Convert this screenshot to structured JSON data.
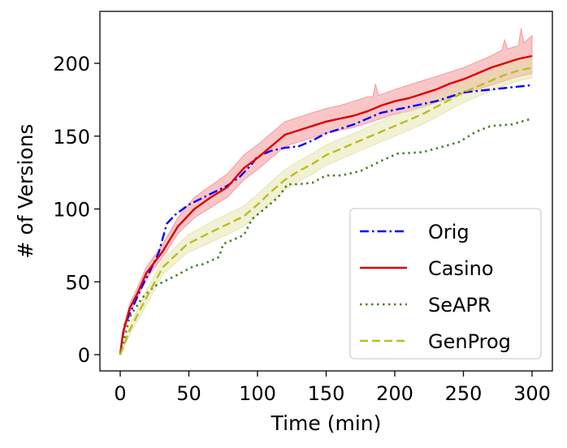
{
  "chart_data": {
    "type": "line",
    "title": "",
    "xlabel": "Time (min)",
    "ylabel": "# of Versions",
    "xlim": [
      -15,
      315
    ],
    "ylim": [
      -11,
      236
    ],
    "xticks": [
      0,
      50,
      100,
      150,
      200,
      250,
      300
    ],
    "yticks": [
      0,
      50,
      100,
      150,
      200
    ],
    "xtick_labels": [
      "0",
      "50",
      "100",
      "150",
      "200",
      "250",
      "300"
    ],
    "ytick_labels": [
      "0",
      "50",
      "100",
      "150",
      "200"
    ],
    "grid": false,
    "legend_position": "lower-right",
    "series": [
      {
        "name": "Orig",
        "color": "#0000ff",
        "style": "dashdot",
        "points": [
          [
            0,
            0
          ],
          [
            3,
            20
          ],
          [
            8,
            30
          ],
          [
            15,
            45
          ],
          [
            22,
            58
          ],
          [
            28,
            70
          ],
          [
            31,
            80
          ],
          [
            34,
            90
          ],
          [
            40,
            96
          ],
          [
            50,
            103
          ],
          [
            65,
            110
          ],
          [
            78,
            116
          ],
          [
            87,
            122
          ],
          [
            95,
            130
          ],
          [
            100,
            136
          ],
          [
            110,
            140
          ],
          [
            120,
            142
          ],
          [
            130,
            143
          ],
          [
            140,
            147
          ],
          [
            150,
            152
          ],
          [
            160,
            155
          ],
          [
            170,
            158
          ],
          [
            180,
            162
          ],
          [
            190,
            166
          ],
          [
            200,
            168
          ],
          [
            210,
            170
          ],
          [
            220,
            172
          ],
          [
            230,
            174
          ],
          [
            240,
            177
          ],
          [
            250,
            180
          ],
          [
            260,
            181
          ],
          [
            270,
            182
          ],
          [
            280,
            183
          ],
          [
            290,
            184
          ],
          [
            300,
            185
          ]
        ]
      },
      {
        "name": "Casino",
        "color": "#dd0000",
        "style": "solid",
        "band_color": "#f08080",
        "points": [
          [
            0,
            0
          ],
          [
            2,
            15
          ],
          [
            7,
            32
          ],
          [
            13,
            43
          ],
          [
            19,
            56
          ],
          [
            31,
            71
          ],
          [
            42,
            88
          ],
          [
            54,
            100
          ],
          [
            66,
            108
          ],
          [
            78,
            115
          ],
          [
            90,
            128
          ],
          [
            100,
            135
          ],
          [
            110,
            143
          ],
          [
            120,
            151
          ],
          [
            130,
            154
          ],
          [
            140,
            157
          ],
          [
            150,
            160
          ],
          [
            160,
            162
          ],
          [
            170,
            164
          ],
          [
            180,
            167
          ],
          [
            190,
            171
          ],
          [
            200,
            174
          ],
          [
            210,
            176
          ],
          [
            220,
            179
          ],
          [
            230,
            182
          ],
          [
            240,
            186
          ],
          [
            250,
            189
          ],
          [
            260,
            193
          ],
          [
            270,
            197
          ],
          [
            280,
            200
          ],
          [
            290,
            203
          ],
          [
            300,
            205
          ]
        ],
        "band_upper": [
          [
            0,
            0
          ],
          [
            2,
            17
          ],
          [
            7,
            35
          ],
          [
            13,
            47
          ],
          [
            19,
            60
          ],
          [
            31,
            76
          ],
          [
            42,
            94
          ],
          [
            54,
            108
          ],
          [
            66,
            116
          ],
          [
            78,
            124
          ],
          [
            90,
            137
          ],
          [
            100,
            144
          ],
          [
            110,
            152
          ],
          [
            120,
            160
          ],
          [
            130,
            163
          ],
          [
            140,
            166
          ],
          [
            150,
            169
          ],
          [
            160,
            171
          ],
          [
            170,
            174
          ],
          [
            180,
            177
          ],
          [
            184,
            177
          ],
          [
            186,
            186
          ],
          [
            188,
            178
          ],
          [
            200,
            182
          ],
          [
            210,
            185
          ],
          [
            220,
            188
          ],
          [
            230,
            191
          ],
          [
            240,
            194
          ],
          [
            250,
            197
          ],
          [
            260,
            201
          ],
          [
            270,
            205
          ],
          [
            278,
            209
          ],
          [
            280,
            216
          ],
          [
            282,
            210
          ],
          [
            290,
            212
          ],
          [
            292,
            224
          ],
          [
            294,
            214
          ],
          [
            300,
            219
          ]
        ],
        "band_lower": [
          [
            0,
            0
          ],
          [
            2,
            13
          ],
          [
            7,
            29
          ],
          [
            13,
            40
          ],
          [
            19,
            52
          ],
          [
            31,
            67
          ],
          [
            42,
            83
          ],
          [
            54,
            94
          ],
          [
            66,
            101
          ],
          [
            78,
            108
          ],
          [
            90,
            120
          ],
          [
            100,
            127
          ],
          [
            110,
            135
          ],
          [
            120,
            143
          ],
          [
            130,
            146
          ],
          [
            140,
            149
          ],
          [
            150,
            152
          ],
          [
            160,
            154
          ],
          [
            170,
            156
          ],
          [
            180,
            159
          ],
          [
            190,
            162
          ],
          [
            200,
            165
          ],
          [
            210,
            167
          ],
          [
            220,
            170
          ],
          [
            230,
            173
          ],
          [
            240,
            176
          ],
          [
            250,
            179
          ],
          [
            260,
            182
          ],
          [
            270,
            185
          ],
          [
            280,
            188
          ],
          [
            290,
            191
          ],
          [
            300,
            193
          ]
        ]
      },
      {
        "name": "SeAPR",
        "color": "#4a7f24",
        "style": "dotted",
        "points": [
          [
            0,
            0
          ],
          [
            7,
            26
          ],
          [
            16,
            39
          ],
          [
            25,
            47
          ],
          [
            40,
            54
          ],
          [
            54,
            61
          ],
          [
            60,
            62
          ],
          [
            72,
            67
          ],
          [
            75,
            76
          ],
          [
            90,
            82
          ],
          [
            96,
            93
          ],
          [
            105,
            100
          ],
          [
            115,
            108
          ],
          [
            122,
            117
          ],
          [
            130,
            117
          ],
          [
            140,
            118
          ],
          [
            150,
            123
          ],
          [
            161,
            123
          ],
          [
            175,
            126
          ],
          [
            190,
            133
          ],
          [
            202,
            138
          ],
          [
            220,
            139
          ],
          [
            232,
            142
          ],
          [
            247,
            146
          ],
          [
            259,
            153
          ],
          [
            270,
            157
          ],
          [
            285,
            158
          ],
          [
            300,
            162
          ]
        ]
      },
      {
        "name": "GenProg",
        "color": "#bcbd22",
        "style": "dashed",
        "band_color": "#dfe0a0",
        "points": [
          [
            0,
            0
          ],
          [
            7,
            17
          ],
          [
            13,
            28
          ],
          [
            19,
            39
          ],
          [
            31,
            60
          ],
          [
            49,
            76
          ],
          [
            66,
            84
          ],
          [
            90,
            95
          ],
          [
            100,
            103
          ],
          [
            110,
            112
          ],
          [
            120,
            120
          ],
          [
            130,
            126
          ],
          [
            140,
            131
          ],
          [
            150,
            137
          ],
          [
            160,
            141
          ],
          [
            170,
            145
          ],
          [
            180,
            149
          ],
          [
            190,
            153
          ],
          [
            200,
            157
          ],
          [
            210,
            161
          ],
          [
            220,
            165
          ],
          [
            230,
            170
          ],
          [
            240,
            175
          ],
          [
            250,
            180
          ],
          [
            260,
            184
          ],
          [
            270,
            188
          ],
          [
            280,
            192
          ],
          [
            290,
            195
          ],
          [
            300,
            197
          ]
        ],
        "band_upper": [
          [
            0,
            0
          ],
          [
            7,
            20
          ],
          [
            13,
            32
          ],
          [
            19,
            44
          ],
          [
            31,
            65
          ],
          [
            49,
            82
          ],
          [
            66,
            91
          ],
          [
            90,
            102
          ],
          [
            100,
            110
          ],
          [
            110,
            119
          ],
          [
            120,
            127
          ],
          [
            130,
            133
          ],
          [
            140,
            138
          ],
          [
            150,
            144
          ],
          [
            160,
            148
          ],
          [
            170,
            152
          ],
          [
            180,
            156
          ],
          [
            190,
            160
          ],
          [
            200,
            164
          ],
          [
            210,
            168
          ],
          [
            220,
            172
          ],
          [
            230,
            177
          ],
          [
            240,
            182
          ],
          [
            250,
            187
          ],
          [
            260,
            191
          ],
          [
            270,
            195
          ],
          [
            280,
            199
          ],
          [
            290,
            202
          ],
          [
            300,
            205
          ]
        ],
        "band_lower": [
          [
            0,
            0
          ],
          [
            7,
            14
          ],
          [
            13,
            24
          ],
          [
            19,
            34
          ],
          [
            31,
            55
          ],
          [
            49,
            70
          ],
          [
            66,
            77
          ],
          [
            90,
            88
          ],
          [
            100,
            96
          ],
          [
            110,
            105
          ],
          [
            120,
            113
          ],
          [
            130,
            119
          ],
          [
            140,
            124
          ],
          [
            150,
            130
          ],
          [
            160,
            134
          ],
          [
            170,
            138
          ],
          [
            180,
            142
          ],
          [
            190,
            146
          ],
          [
            200,
            150
          ],
          [
            210,
            154
          ],
          [
            220,
            158
          ],
          [
            230,
            163
          ],
          [
            240,
            168
          ],
          [
            250,
            173
          ],
          [
            260,
            177
          ],
          [
            270,
            181
          ],
          [
            280,
            185
          ],
          [
            290,
            188
          ],
          [
            300,
            190
          ]
        ]
      }
    ]
  }
}
